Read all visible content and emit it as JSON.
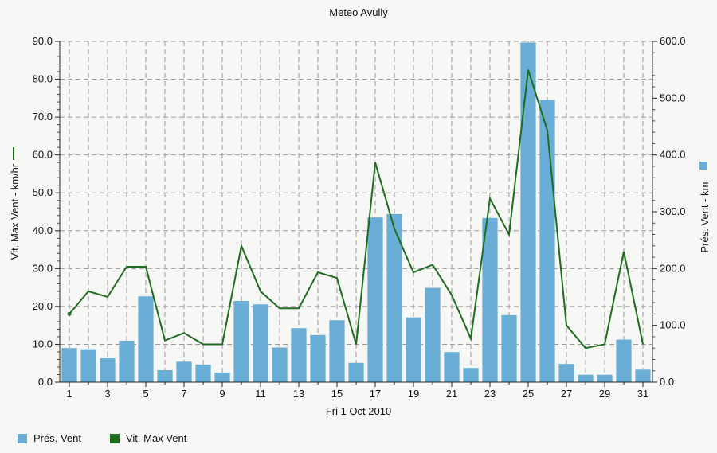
{
  "chart_data": {
    "type": "bar",
    "title": "Meteo  Avully",
    "xlabel": "Fri 1 Oct 2010",
    "ylabel_left": "Vit. Max Vent - km/hr",
    "ylabel_right": "Prés. Vent - km",
    "x": [
      1,
      2,
      3,
      4,
      5,
      6,
      7,
      8,
      9,
      10,
      11,
      12,
      13,
      14,
      15,
      16,
      17,
      18,
      19,
      20,
      21,
      22,
      23,
      24,
      25,
      26,
      27,
      28,
      29,
      30,
      31
    ],
    "x_tick_labels": [
      "1",
      "3",
      "5",
      "7",
      "9",
      "11",
      "13",
      "15",
      "17",
      "19",
      "21",
      "23",
      "25",
      "27",
      "29",
      "31"
    ],
    "y_left_ticks": [
      "0.0",
      "10.0",
      "20.0",
      "30.0",
      "40.0",
      "50.0",
      "60.0",
      "70.0",
      "80.0",
      "90.0"
    ],
    "y_right_ticks": [
      "0.0",
      "100.0",
      "200.0",
      "300.0",
      "400.0",
      "500.0",
      "600.0"
    ],
    "ylim_left": [
      0,
      90
    ],
    "ylim_right": [
      0,
      600
    ],
    "grid": true,
    "legend_position": "bottom-left",
    "series": [
      {
        "name": "Prés. Vent",
        "type": "bar",
        "axis": "right",
        "color": "#6aaed6",
        "values": [
          60,
          58,
          42,
          73,
          151,
          21,
          36,
          31,
          17,
          143,
          137,
          61,
          95,
          83,
          109,
          34,
          290,
          296,
          114,
          166,
          53,
          25,
          289,
          118,
          598,
          497,
          32,
          13,
          13,
          75,
          22
        ]
      },
      {
        "name": "Vit. Max Vent",
        "type": "line",
        "axis": "left",
        "color": "#1f6b1f",
        "values": [
          18,
          24,
          22.5,
          30.5,
          30.5,
          11,
          13,
          10,
          10,
          36,
          24,
          19.5,
          19.5,
          29,
          27.5,
          10,
          58,
          40.5,
          29,
          31,
          23,
          11.5,
          48.5,
          39,
          82.5,
          66.5,
          15,
          9,
          10,
          34.5,
          10
        ]
      }
    ]
  }
}
